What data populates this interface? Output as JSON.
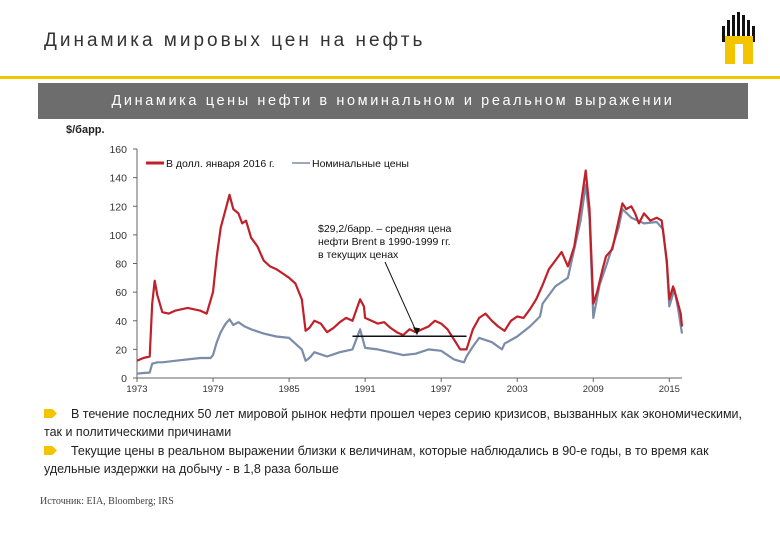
{
  "page": {
    "title": "Динамика мировых цен на нефть",
    "banner": "Динамика цены нефти в номинальном и реальном выражении",
    "unit_label": "$/барр.",
    "bullets": [
      "В течение последних 50 лет мировой рынок нефти прошел через серию кризисов, вызванных как экономическими, так и политическими причинами",
      "Текущие цены в реальном выражении близки к величинам, которые наблюдались в 90-е годы, в то время как удельные издержки на добычу - в 1,8 раза больше"
    ],
    "source": "Источник: EIA, Bloomberg; IRS"
  },
  "colors": {
    "real_series": "#c0202a",
    "nominal_series": "#7a8ca8",
    "accent": "#f2c500",
    "banner_bg": "#6d6d6d"
  },
  "chart_data": {
    "type": "line",
    "ylim": [
      0,
      160
    ],
    "yticks": [
      0,
      20,
      40,
      60,
      80,
      100,
      120,
      140,
      160
    ],
    "xlim": [
      1973,
      2016
    ],
    "xticks": [
      1973,
      1979,
      1985,
      1991,
      1997,
      2003,
      2009,
      2015
    ],
    "grid": false,
    "legend_position": "top-left",
    "annotation": {
      "lines": [
        "$29,2/барр. – средняя цена",
        "нефти Brent  в 1990-1999 гг.",
        "в текущих ценах"
      ],
      "value": 29.2,
      "x_range": [
        1990,
        1999
      ]
    },
    "series": [
      {
        "name": "В долл. января 2016 г.",
        "points": [
          [
            1973,
            12
          ],
          [
            1973.5,
            14
          ],
          [
            1974,
            15
          ],
          [
            1974.2,
            52
          ],
          [
            1974.4,
            68
          ],
          [
            1974.6,
            58
          ],
          [
            1975,
            46
          ],
          [
            1975.5,
            45
          ],
          [
            1976,
            47
          ],
          [
            1977,
            49
          ],
          [
            1977.5,
            48
          ],
          [
            1978,
            47
          ],
          [
            1978.5,
            45
          ],
          [
            1979,
            60
          ],
          [
            1979.3,
            85
          ],
          [
            1979.6,
            105
          ],
          [
            1980,
            118
          ],
          [
            1980.3,
            128
          ],
          [
            1980.6,
            118
          ],
          [
            1981,
            115
          ],
          [
            1981.3,
            108
          ],
          [
            1981.6,
            110
          ],
          [
            1982,
            98
          ],
          [
            1982.5,
            92
          ],
          [
            1983,
            82
          ],
          [
            1983.5,
            78
          ],
          [
            1984,
            76
          ],
          [
            1984.5,
            73
          ],
          [
            1985,
            70
          ],
          [
            1985.5,
            66
          ],
          [
            1986,
            55
          ],
          [
            1986.3,
            33
          ],
          [
            1986.6,
            35
          ],
          [
            1987,
            40
          ],
          [
            1987.5,
            38
          ],
          [
            1988,
            32
          ],
          [
            1988.5,
            35
          ],
          [
            1989,
            39
          ],
          [
            1989.5,
            42
          ],
          [
            1990,
            40
          ],
          [
            1990.6,
            55
          ],
          [
            1990.9,
            50
          ],
          [
            1991,
            42
          ],
          [
            1991.5,
            40
          ],
          [
            1992,
            38
          ],
          [
            1992.5,
            39
          ],
          [
            1993,
            35
          ],
          [
            1993.5,
            32
          ],
          [
            1994,
            30
          ],
          [
            1994.5,
            34
          ],
          [
            1995,
            32
          ],
          [
            1995.5,
            34
          ],
          [
            1996,
            36
          ],
          [
            1996.5,
            40
          ],
          [
            1997,
            38
          ],
          [
            1997.5,
            34
          ],
          [
            1998,
            27
          ],
          [
            1998.5,
            20
          ],
          [
            1999,
            20
          ],
          [
            1999.5,
            34
          ],
          [
            2000,
            42
          ],
          [
            2000.5,
            45
          ],
          [
            2001,
            40
          ],
          [
            2001.5,
            36
          ],
          [
            2002,
            33
          ],
          [
            2002.5,
            40
          ],
          [
            2003,
            43
          ],
          [
            2003.5,
            42
          ],
          [
            2004,
            48
          ],
          [
            2004.5,
            55
          ],
          [
            2005,
            65
          ],
          [
            2005.5,
            76
          ],
          [
            2006,
            82
          ],
          [
            2006.5,
            88
          ],
          [
            2007,
            78
          ],
          [
            2007.5,
            92
          ],
          [
            2008,
            120
          ],
          [
            2008.4,
            145
          ],
          [
            2008.7,
            118
          ],
          [
            2009,
            52
          ],
          [
            2009.3,
            60
          ],
          [
            2009.7,
            75
          ],
          [
            2010,
            85
          ],
          [
            2010.5,
            90
          ],
          [
            2011,
            110
          ],
          [
            2011.3,
            122
          ],
          [
            2011.6,
            118
          ],
          [
            2012,
            120
          ],
          [
            2012.3,
            115
          ],
          [
            2012.6,
            108
          ],
          [
            2013,
            115
          ],
          [
            2013.5,
            110
          ],
          [
            2014,
            112
          ],
          [
            2014.4,
            110
          ],
          [
            2014.8,
            82
          ],
          [
            2015,
            55
          ],
          [
            2015.3,
            64
          ],
          [
            2015.6,
            55
          ],
          [
            2015.9,
            45
          ],
          [
            2016,
            36
          ]
        ]
      },
      {
        "name": "Номинальные цены",
        "points": [
          [
            1973,
            3
          ],
          [
            1973.5,
            3.5
          ],
          [
            1974,
            3.8
          ],
          [
            1974.2,
            10
          ],
          [
            1974.6,
            11
          ],
          [
            1975,
            11
          ],
          [
            1976,
            12
          ],
          [
            1977,
            13
          ],
          [
            1978,
            14
          ],
          [
            1978.8,
            14
          ],
          [
            1979,
            16
          ],
          [
            1979.3,
            25
          ],
          [
            1979.6,
            32
          ],
          [
            1980,
            38
          ],
          [
            1980.3,
            41
          ],
          [
            1980.6,
            37
          ],
          [
            1981,
            39
          ],
          [
            1981.5,
            36
          ],
          [
            1982,
            34
          ],
          [
            1983,
            31
          ],
          [
            1984,
            29
          ],
          [
            1985,
            28
          ],
          [
            1986,
            20
          ],
          [
            1986.3,
            12
          ],
          [
            1986.6,
            14
          ],
          [
            1987,
            18
          ],
          [
            1988,
            15
          ],
          [
            1989,
            18
          ],
          [
            1990,
            20
          ],
          [
            1990.6,
            34
          ],
          [
            1991,
            21
          ],
          [
            1992,
            20
          ],
          [
            1993,
            18
          ],
          [
            1994,
            16
          ],
          [
            1995,
            17
          ],
          [
            1996,
            20
          ],
          [
            1997,
            19
          ],
          [
            1998,
            13
          ],
          [
            1998.8,
            11
          ],
          [
            1999,
            15
          ],
          [
            1999.5,
            22
          ],
          [
            2000,
            28
          ],
          [
            2001,
            25
          ],
          [
            2001.8,
            20
          ],
          [
            2002,
            24
          ],
          [
            2003,
            29
          ],
          [
            2004,
            36
          ],
          [
            2004.8,
            43
          ],
          [
            2005,
            52
          ],
          [
            2006,
            64
          ],
          [
            2007,
            70
          ],
          [
            2008,
            110
          ],
          [
            2008.4,
            135
          ],
          [
            2008.7,
            112
          ],
          [
            2009,
            42
          ],
          [
            2009.5,
            65
          ],
          [
            2010,
            78
          ],
          [
            2011,
            105
          ],
          [
            2011.3,
            118
          ],
          [
            2012,
            112
          ],
          [
            2013,
            108
          ],
          [
            2014,
            109
          ],
          [
            2014.5,
            104
          ],
          [
            2014.8,
            80
          ],
          [
            2015,
            50
          ],
          [
            2015.4,
            62
          ],
          [
            2015.7,
            48
          ],
          [
            2016,
            31
          ]
        ]
      }
    ]
  }
}
